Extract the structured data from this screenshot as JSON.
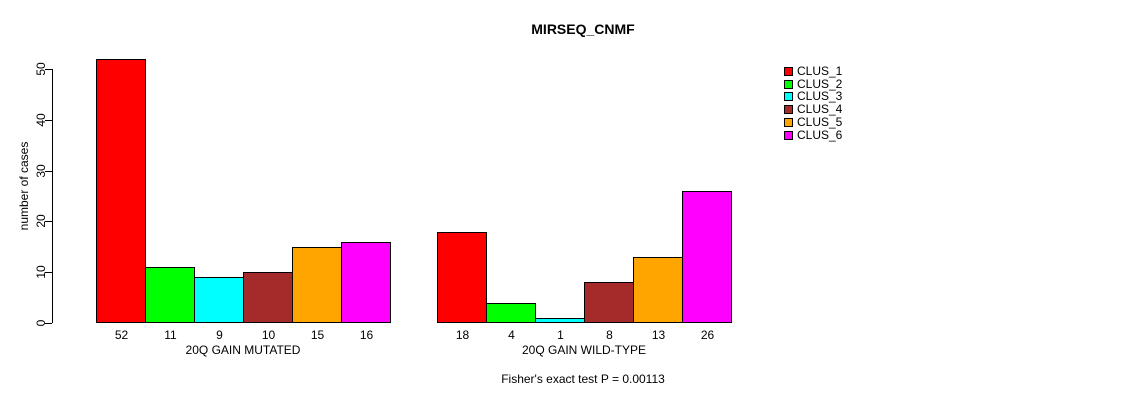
{
  "chart_data": {
    "type": "bar",
    "title": "MIRSEQ_CNMF",
    "ylabel": "number of cases",
    "xlabel": "",
    "ylim": [
      0,
      50
    ],
    "yticks": [
      0,
      10,
      20,
      30,
      40,
      50
    ],
    "grid": false,
    "legend_position": "right-outside",
    "legend": [
      {
        "label": "CLUS_1",
        "color": "#FF0000"
      },
      {
        "label": "CLUS_2",
        "color": "#00FF00"
      },
      {
        "label": "CLUS_3",
        "color": "#00FFFF"
      },
      {
        "label": "CLUS_4",
        "color": "#A52A2A"
      },
      {
        "label": "CLUS_5",
        "color": "#FFA500"
      },
      {
        "label": "CLUS_6",
        "color": "#FF00FF"
      }
    ],
    "groups": [
      {
        "label": "20Q GAIN MUTATED",
        "values": [
          52,
          11,
          9,
          10,
          15,
          16
        ]
      },
      {
        "label": "20Q GAIN WILD-TYPE",
        "values": [
          18,
          4,
          1,
          8,
          13,
          26
        ]
      }
    ],
    "bar_value_labels_shown": true,
    "footnote": "Fisher's exact test P = 0.00113",
    "axis_color": "#000000",
    "background_color": "#FFFFFF"
  }
}
